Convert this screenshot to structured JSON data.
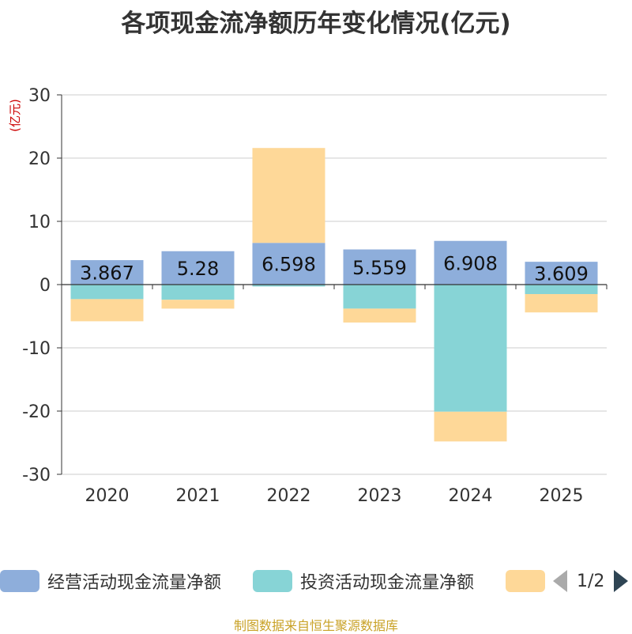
{
  "chart_data": {
    "type": "bar",
    "stacked": true,
    "title": "各项现金流净额历年变化情况(亿元)",
    "ylabel": "(亿元)",
    "xlabel": "",
    "ylim": [
      -30,
      30
    ],
    "yticks": [
      30,
      20,
      10,
      0,
      -10,
      -20,
      -30
    ],
    "categories": [
      "2020",
      "2021",
      "2022",
      "2023",
      "2024",
      "2025"
    ],
    "series": [
      {
        "name": "经营活动现金流量净额",
        "color": "#8eaedb",
        "values": [
          3.867,
          5.28,
          6.598,
          5.559,
          6.908,
          3.609
        ],
        "labels": [
          "3.867",
          "5.28",
          "6.598",
          "5.559",
          "6.908",
          "3.609"
        ]
      },
      {
        "name": "投资活动现金流量净额",
        "color": "#87d4d6",
        "values": [
          -2.3,
          -2.4,
          -0.3,
          -3.8,
          -20.1,
          -1.5
        ]
      },
      {
        "name": "",
        "color": "#fed898",
        "values": [
          -3.5,
          -1.4,
          15.0,
          -2.2,
          -4.7,
          -2.9
        ]
      }
    ],
    "legend": {
      "position": "bottom",
      "page": "1/2"
    }
  },
  "footer": {
    "source": "制图数据来自恒生聚源数据库"
  }
}
